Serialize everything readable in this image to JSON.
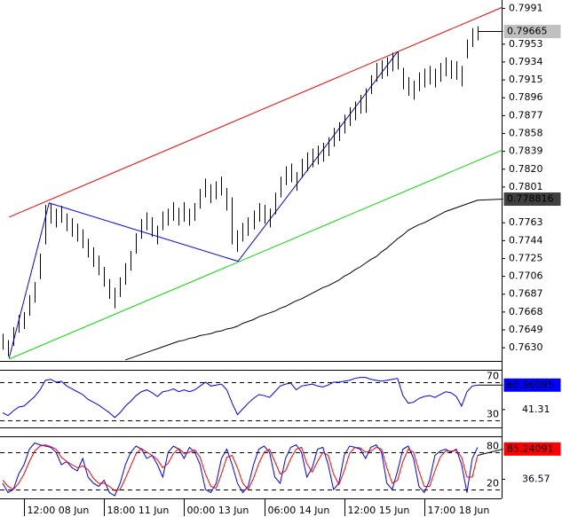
{
  "chart_data": [
    {
      "type": "ohlc",
      "categories": [
        null,
        null,
        null,
        null,
        "12:00 08 Jun",
        null,
        null,
        null,
        null,
        null,
        null,
        null,
        null,
        null,
        null,
        null,
        null,
        null,
        null,
        "18:00 11 Jun",
        null,
        null,
        null,
        null,
        null,
        null,
        null,
        null,
        null,
        null,
        null,
        null,
        null,
        null,
        "00:00 13 Jun",
        null,
        null,
        null,
        null,
        null,
        null,
        null,
        null,
        null,
        null,
        null,
        null,
        null,
        null,
        "06:00 14 Jun",
        null,
        null,
        null,
        null,
        null,
        null,
        null,
        null,
        null,
        null,
        null,
        null,
        null,
        null,
        "12:00 15 Jun",
        null,
        null,
        null,
        null,
        null,
        null,
        null,
        null,
        null,
        null,
        null,
        null,
        null,
        null,
        "17:00 18 Jun",
        null,
        null,
        null,
        null,
        null,
        null,
        null,
        null,
        null,
        null
      ],
      "xlim": [
        -0.5,
        93.5
      ],
      "color": "#000000",
      "high": [
        0.7645,
        0.7638,
        0.7652,
        0.7665,
        0.7668,
        0.7686,
        0.77,
        0.773,
        0.7782,
        0.7784,
        0.7778,
        0.7781,
        0.7773,
        0.7768,
        0.7762,
        0.7756,
        0.7746,
        0.7737,
        0.7728,
        0.7716,
        0.7703,
        0.7694,
        0.7705,
        0.772,
        0.7733,
        0.7752,
        0.7767,
        0.7774,
        0.7769,
        0.776,
        0.7775,
        0.7778,
        0.7785,
        0.7779,
        0.7785,
        0.7778,
        0.7784,
        0.7799,
        0.781,
        0.7804,
        0.7807,
        0.7812,
        0.78,
        0.779,
        0.7755,
        0.7763,
        0.7769,
        0.7776,
        0.7784,
        0.7782,
        0.7778,
        0.7795,
        0.7812,
        0.7823,
        0.7826,
        0.7817,
        0.7831,
        0.7838,
        0.7842,
        0.7845,
        0.7848,
        0.7854,
        0.7864,
        0.787,
        0.7878,
        0.7886,
        0.7892,
        0.7899,
        0.7906,
        0.792,
        0.7933,
        0.7936,
        0.7939,
        0.7944,
        0.7945,
        0.7928,
        0.7918,
        0.7914,
        0.7923,
        0.7927,
        0.793,
        0.7927,
        0.7933,
        0.7939,
        0.7936,
        0.7935,
        0.793,
        0.7958,
        0.797,
        0.7972
      ],
      "low": [
        0.7628,
        0.7621,
        0.7632,
        0.7646,
        0.765,
        0.7664,
        0.7678,
        0.7703,
        0.774,
        0.7762,
        0.7758,
        0.7763,
        0.7754,
        0.7748,
        0.7743,
        0.7736,
        0.7726,
        0.7716,
        0.7707,
        0.7695,
        0.7682,
        0.7672,
        0.7684,
        0.7697,
        0.7712,
        0.773,
        0.7746,
        0.7755,
        0.7748,
        0.774,
        0.7755,
        0.776,
        0.7765,
        0.776,
        0.7764,
        0.776,
        0.7765,
        0.7778,
        0.779,
        0.7784,
        0.7788,
        0.7792,
        0.7776,
        0.774,
        0.7732,
        0.7743,
        0.7749,
        0.7756,
        0.7764,
        0.7762,
        0.7758,
        0.7772,
        0.779,
        0.7803,
        0.7806,
        0.7797,
        0.7811,
        0.7818,
        0.7822,
        0.7825,
        0.7828,
        0.7834,
        0.7844,
        0.785,
        0.7858,
        0.7866,
        0.7872,
        0.7879,
        0.788,
        0.79,
        0.7913,
        0.7916,
        0.7919,
        0.7924,
        0.7926,
        0.7905,
        0.7898,
        0.7894,
        0.7903,
        0.7907,
        0.791,
        0.7907,
        0.7913,
        0.7919,
        0.7916,
        0.7915,
        0.7908,
        0.7938,
        0.795,
        0.7957
      ],
      "ylim": [
        0.7616,
        0.8
      ],
      "yticks": [
        0.7991,
        0.7953,
        0.7934,
        0.7915,
        0.7896,
        0.7877,
        0.7858,
        0.7839,
        {
          "value": 0.782,
          "label": "0.7820"
        },
        0.7801,
        0.7763,
        0.7744,
        0.7725,
        0.7706,
        0.7687,
        0.7668,
        0.7649,
        {
          "value": 0.763,
          "label": "0.7630"
        }
      ],
      "last_price": 0.79665,
      "last_price_fill": "#c0c0c0",
      "moving_average": {
        "color": "#000000",
        "label_fill": "#404040",
        "last_value": 0.778816,
        "values": [
          null,
          null,
          null,
          null,
          null,
          null,
          null,
          null,
          null,
          null,
          null,
          null,
          null,
          null,
          null,
          null,
          null,
          null,
          null,
          null,
          null,
          null,
          null,
          0.7617,
          0.7619,
          0.7621,
          0.7623,
          0.7625,
          0.7627,
          0.7629,
          0.7631,
          0.7633,
          0.7635,
          0.7637,
          0.7638,
          0.764,
          0.7641,
          0.7643,
          0.7644,
          0.7645,
          0.7647,
          0.7648,
          0.765,
          0.7651,
          0.7653,
          0.7656,
          0.7658,
          0.766,
          0.7663,
          0.7665,
          0.7667,
          0.7669,
          0.7672,
          0.7674,
          0.7677,
          0.768,
          0.7682,
          0.7685,
          0.7688,
          0.7691,
          0.7694,
          0.7696,
          0.7699,
          0.7702,
          0.7706,
          0.7709,
          0.7713,
          0.7716,
          0.772,
          0.7724,
          0.7727,
          0.7732,
          0.7736,
          0.7741,
          0.7746,
          0.775,
          0.7755,
          0.7758,
          0.7761,
          0.7763,
          0.7766,
          0.7769,
          0.7772,
          0.7775,
          0.7777,
          0.7779,
          0.7781,
          0.7783,
          0.7785,
          0.7787
        ]
      },
      "trendlines": [
        {
          "color": "#ff0000",
          "x": [
            1.2,
            93.5
          ],
          "values": [
            0.7769,
            0.7992
          ]
        },
        {
          "color": "#00e000",
          "x": [
            1.2,
            93.5
          ],
          "values": [
            0.7618,
            0.784
          ]
        },
        {
          "color": "#0000ff",
          "x": [
            1.2,
            8.7,
            44.1,
            74.0
          ],
          "values": [
            0.7619,
            0.7784,
            0.7722,
            0.7945
          ]
        }
      ]
    },
    {
      "type": "line",
      "ylim": [
        22.6,
        83
      ],
      "levels": [
        70,
        30
      ],
      "yticks": [
        41.31
      ],
      "series": [
        {
          "color": "#0000ff",
          "last_value": 66.96095,
          "values": [
            38,
            35,
            40,
            44,
            45,
            50,
            55,
            62,
            72,
            73,
            70,
            71,
            66,
            63,
            60,
            57,
            52,
            49,
            46,
            42,
            38,
            33,
            38,
            45,
            50,
            56,
            60,
            62,
            59,
            55,
            60,
            61,
            63,
            60,
            62,
            60,
            62,
            66,
            70,
            66,
            67,
            68,
            62,
            48,
            36,
            42,
            48,
            53,
            57,
            56,
            54,
            60,
            66,
            68,
            69,
            62,
            66,
            67,
            68,
            66,
            65,
            67,
            70,
            70,
            71,
            72,
            74,
            75,
            75,
            73,
            72,
            71,
            72,
            73,
            74,
            56,
            48,
            49,
            53,
            55,
            56,
            54,
            57,
            60,
            59,
            55,
            45,
            60,
            66,
            67
          ]
        }
      ]
    },
    {
      "type": "line",
      "ylim": [
        5.7,
        104.3
      ],
      "levels": [
        80,
        20
      ],
      "yticks": [
        36.57
      ],
      "series": [
        {
          "color": "#0000ff",
          "values": [
            30,
            15,
            20,
            45,
            60,
            85,
            95,
            92,
            90,
            88,
            80,
            60,
            65,
            55,
            50,
            70,
            40,
            30,
            25,
            35,
            15,
            10,
            30,
            60,
            80,
            90,
            85,
            70,
            75,
            60,
            40,
            80,
            90,
            85,
            70,
            88,
            80,
            60,
            20,
            15,
            30,
            70,
            85,
            60,
            30,
            15,
            25,
            60,
            85,
            90,
            80,
            40,
            30,
            70,
            88,
            92,
            80,
            40,
            55,
            85,
            88,
            60,
            20,
            30,
            75,
            90,
            88,
            85,
            70,
            88,
            92,
            80,
            30,
            20,
            50,
            85,
            90,
            70,
            25,
            15,
            35,
            75,
            82,
            85,
            80,
            85,
            60,
            15,
            70,
            88
          ]
        },
        {
          "color": "#ff0000",
          "last_value": 85.24091,
          "values": [
            35,
            25,
            20,
            30,
            45,
            65,
            82,
            90,
            92,
            89,
            85,
            72,
            65,
            60,
            55,
            58,
            52,
            38,
            30,
            30,
            25,
            18,
            20,
            38,
            58,
            78,
            86,
            80,
            75,
            68,
            55,
            62,
            78,
            86,
            78,
            80,
            84,
            72,
            45,
            25,
            22,
            45,
            72,
            75,
            55,
            30,
            20,
            38,
            62,
            80,
            85,
            65,
            45,
            50,
            70,
            85,
            88,
            62,
            48,
            65,
            80,
            75,
            45,
            28,
            50,
            78,
            88,
            87,
            80,
            82,
            88,
            85,
            55,
            30,
            35,
            65,
            85,
            80,
            50,
            25,
            25,
            50,
            72,
            82,
            82,
            83,
            72,
            40,
            40,
            75
          ]
        }
      ]
    }
  ]
}
